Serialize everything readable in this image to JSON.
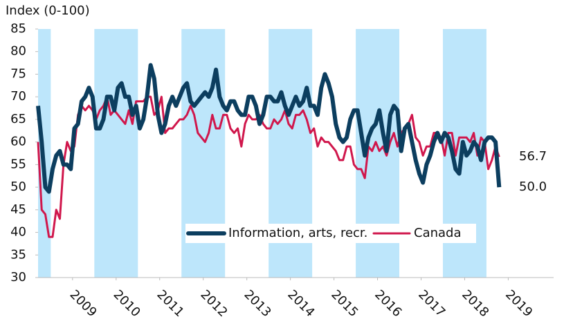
{
  "chart_data": {
    "type": "line",
    "y_axis_label": "Index (0-100)",
    "x": [
      0,
      1,
      2,
      3,
      4,
      5,
      6,
      7,
      8,
      9,
      10,
      11,
      12,
      13,
      14,
      15,
      16,
      17,
      18,
      19,
      20,
      21,
      22,
      23,
      24,
      25,
      26,
      27,
      28,
      29,
      30,
      31,
      32,
      33,
      34,
      35,
      36,
      37,
      38,
      39,
      40,
      41,
      42,
      43,
      44,
      45,
      46,
      47,
      48,
      49,
      50,
      51,
      52,
      53,
      54,
      55,
      56,
      57,
      58,
      59,
      60,
      61,
      62,
      63,
      64,
      65,
      66,
      67,
      68,
      69,
      70,
      71,
      72,
      73,
      74,
      75,
      76,
      77,
      78,
      79,
      80,
      81,
      82,
      83,
      84,
      85,
      86,
      87,
      88,
      89,
      90,
      91,
      92,
      93,
      94,
      95,
      96,
      97,
      98,
      99,
      100,
      101,
      102,
      103,
      104,
      105,
      106,
      107,
      108,
      109,
      110,
      111,
      112,
      113,
      114,
      115,
      116,
      117,
      118,
      119,
      120,
      121,
      122,
      123,
      124,
      125,
      126,
      127
    ],
    "series": [
      {
        "name": "Information, arts, recr.",
        "color": "#0c3e5f",
        "width": 6,
        "end_label": "50.0",
        "values": [
          68,
          60,
          50,
          49,
          54,
          57,
          58,
          55,
          55,
          54,
          63,
          64,
          69,
          70,
          72,
          70,
          63,
          63,
          65,
          70,
          70,
          67,
          72,
          73,
          70,
          70,
          66,
          68,
          63,
          65,
          70,
          77,
          74,
          66,
          62,
          64,
          68,
          70,
          68,
          70,
          72,
          73,
          69,
          68,
          69,
          70,
          71,
          70,
          72,
          76,
          70,
          68,
          67,
          69,
          69,
          67,
          66,
          66,
          70,
          70,
          68,
          64,
          66,
          70,
          70,
          69,
          69,
          71,
          68,
          66,
          68,
          70,
          68,
          69,
          72,
          68,
          68,
          66,
          72,
          75,
          73,
          70,
          64,
          61,
          60,
          61,
          65,
          67,
          67,
          62,
          57,
          61,
          63,
          64,
          67,
          62,
          58,
          66,
          68,
          67,
          58,
          63,
          64,
          60,
          56,
          53,
          51,
          55,
          57,
          60,
          62,
          60,
          62,
          61,
          58,
          54,
          53,
          60,
          57,
          58,
          60,
          59,
          56,
          60,
          61,
          61,
          60,
          50
        ]
      },
      {
        "name": "Canada",
        "color": "#d0174c",
        "width": 3,
        "end_label": "56.7",
        "values": [
          60,
          45,
          44,
          39,
          39,
          45,
          43,
          55,
          60,
          58,
          59,
          66,
          68,
          67,
          68,
          67,
          65,
          67,
          68,
          70,
          66,
          67,
          66,
          65,
          64,
          67,
          64,
          69,
          69,
          69,
          70,
          70,
          66,
          67,
          70,
          62,
          63,
          63,
          64,
          65,
          65,
          66,
          68,
          66,
          62,
          61,
          60,
          62,
          66,
          63,
          63,
          66,
          66,
          63,
          62,
          63,
          59,
          64,
          66,
          65,
          65,
          66,
          64,
          63,
          63,
          65,
          64,
          65,
          67,
          64,
          63,
          66,
          66,
          67,
          65,
          62,
          63,
          59,
          61,
          60,
          60,
          59,
          58,
          56,
          56,
          59,
          59,
          55,
          54,
          54,
          52,
          59,
          58,
          60,
          58,
          59,
          57,
          60,
          62,
          59,
          62,
          63,
          64,
          66,
          61,
          60,
          57,
          59,
          59,
          62,
          62,
          61,
          57,
          62,
          62,
          57,
          61,
          61,
          61,
          60,
          62,
          57,
          61,
          60,
          54,
          56,
          59,
          56.7
        ]
      }
    ],
    "xlim": [
      0,
      142
    ],
    "xticks": [
      {
        "value": 9.5,
        "label": "2009"
      },
      {
        "value": 21.5,
        "label": "2010"
      },
      {
        "value": 33.5,
        "label": "2011"
      },
      {
        "value": 45.5,
        "label": "2012"
      },
      {
        "value": 57.5,
        "label": "2013"
      },
      {
        "value": 69.5,
        "label": "2014"
      },
      {
        "value": 81.5,
        "label": "2015"
      },
      {
        "value": 93.5,
        "label": "2016"
      },
      {
        "value": 105.5,
        "label": "2017"
      },
      {
        "value": 117.5,
        "label": "2018"
      },
      {
        "value": 129.5,
        "label": "2019"
      }
    ],
    "ylim": [
      30,
      85
    ],
    "yticks": [
      30,
      35,
      40,
      45,
      50,
      55,
      60,
      65,
      70,
      75,
      80,
      85
    ],
    "bands": [
      [
        0,
        3.5
      ],
      [
        15.5,
        27.5
      ],
      [
        39.5,
        51.5
      ],
      [
        63.5,
        75.5
      ],
      [
        87.5,
        99.5
      ],
      [
        111.5,
        123.5
      ]
    ],
    "band_color": "#bde6fb",
    "legend": "bottom-center"
  }
}
